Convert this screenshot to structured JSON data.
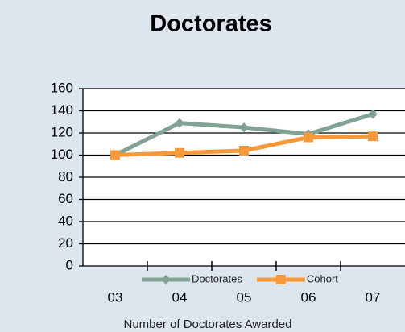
{
  "chart_data": {
    "type": "line",
    "title": "Doctorates",
    "x_label": "Number of Doctorates Awarded",
    "categories": [
      "03",
      "04",
      "05",
      "06",
      "07"
    ],
    "series": [
      {
        "name": "Doctorates",
        "color": "#82a393",
        "marker": "diamond",
        "values": [
          100,
          129,
          125,
          119,
          137
        ]
      },
      {
        "name": "Cohort",
        "color": "#f7993a",
        "marker": "square",
        "values": [
          100,
          102,
          104,
          116,
          117
        ]
      }
    ],
    "ylim": [
      0,
      160
    ],
    "yticks": [
      0,
      20,
      40,
      60,
      80,
      100,
      120,
      140,
      160
    ],
    "grid": true,
    "legend": "bottom"
  }
}
